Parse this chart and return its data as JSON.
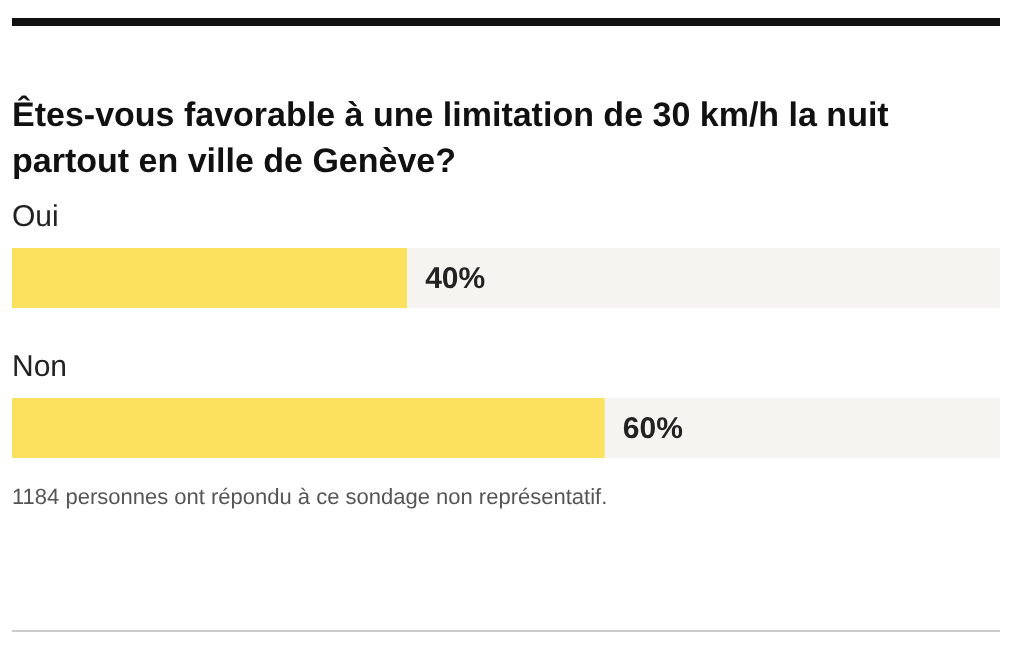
{
  "chart_data": {
    "type": "bar",
    "orientation": "horizontal",
    "stacked": true,
    "title": "Êtes-vous favorable à une limitation de 30 km/h la nuit partout en ville de Genève?",
    "categories": [
      "Oui",
      "Non"
    ],
    "series": [
      {
        "color": "#fce15e",
        "values": [
          40,
          60
        ],
        "value_labels": [
          "40%",
          "60%"
        ]
      },
      {
        "color": "#f5f4f1",
        "values": [
          60,
          40
        ]
      }
    ],
    "xlim": [
      0,
      100
    ],
    "tick_labels": false,
    "annotations": [
      "1184 personnes ont répondu à ce sondage non représentatif."
    ]
  }
}
